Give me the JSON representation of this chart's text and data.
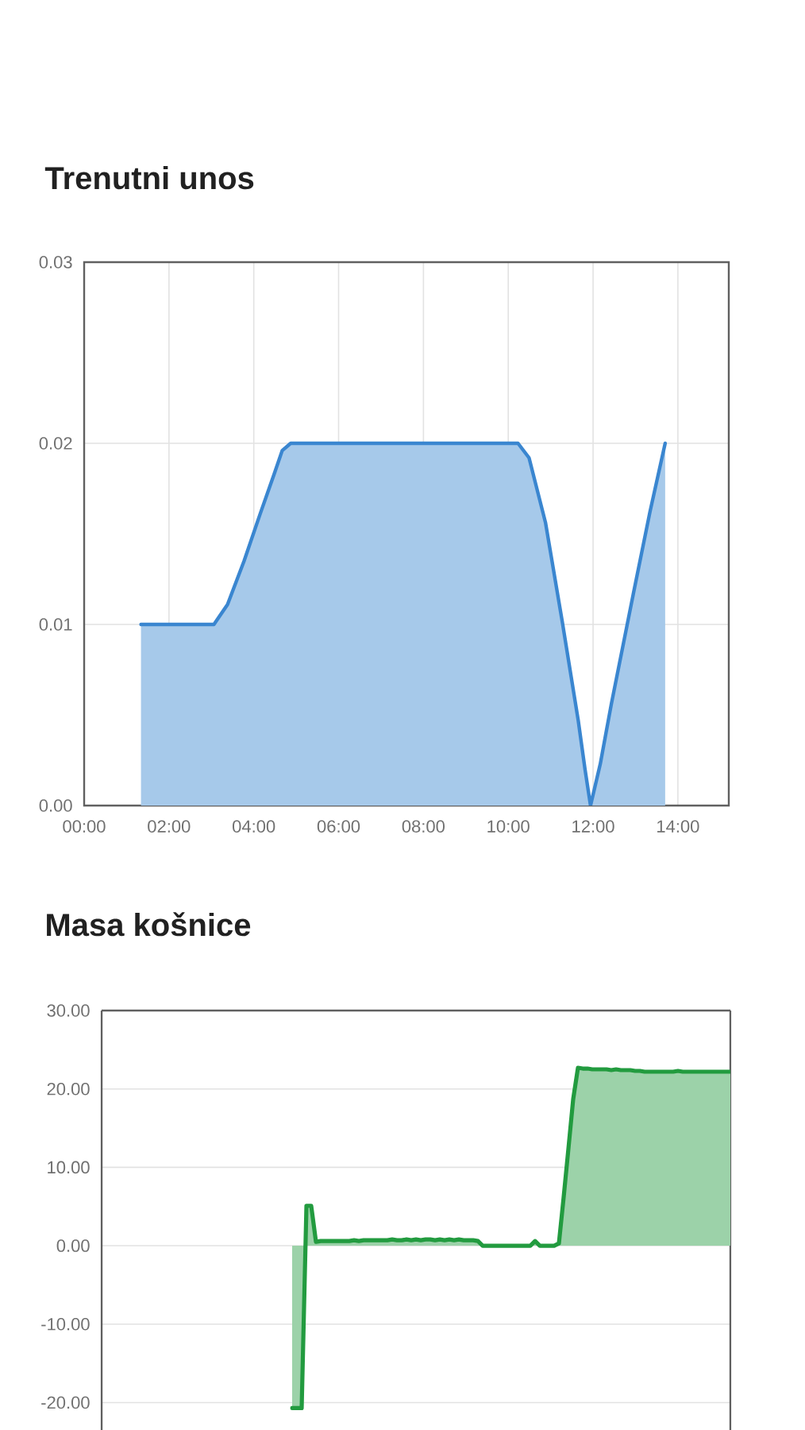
{
  "chart_data": [
    {
      "type": "area",
      "title": "Trenutni unos",
      "x": [
        1.34,
        3.06,
        3.38,
        3.77,
        4.15,
        4.48,
        4.67,
        4.87,
        10.23,
        10.49,
        10.88,
        11.27,
        11.65,
        11.81,
        11.94,
        12.17,
        12.43,
        12.95,
        13.34,
        13.7
      ],
      "values": [
        0.01,
        0.01,
        0.0111,
        0.0135,
        0.0161,
        0.0183,
        0.0196,
        0.02,
        0.02,
        0.0192,
        0.0156,
        0.0102,
        0.0047,
        0.002,
        0,
        0.0023,
        0.0056,
        0.0117,
        0.0162,
        0.02
      ],
      "color": "#3a86d0",
      "xlim": [
        0,
        15.2
      ],
      "xticks": [
        {
          "value": 0,
          "label": "00:00"
        },
        {
          "value": 2,
          "label": "02:00"
        },
        {
          "value": 4,
          "label": "04:00"
        },
        {
          "value": 6,
          "label": "06:00"
        },
        {
          "value": 8,
          "label": "08:00"
        },
        {
          "value": 10,
          "label": "10:00"
        },
        {
          "value": 12,
          "label": "12:00"
        },
        {
          "value": 14,
          "label": "14:00"
        }
      ],
      "ylim": [
        0,
        0.03
      ],
      "yticks": [
        {
          "value": 0,
          "label": "0.00"
        },
        0.01,
        0.02,
        0.03
      ],
      "grid": true
    },
    {
      "type": "area",
      "title": "Masa košnice",
      "categories": [
        null,
        null,
        null,
        null,
        null,
        null,
        null,
        null,
        null,
        null,
        null,
        null,
        null,
        null,
        null,
        null,
        null,
        null,
        null,
        null,
        null,
        null,
        null,
        null,
        null,
        null,
        null,
        null,
        null,
        null,
        null,
        null,
        null,
        null,
        null,
        null,
        null,
        null,
        null,
        null,
        null,
        null,
        null,
        null,
        null,
        null,
        null,
        null,
        null,
        null,
        null,
        null,
        null,
        null,
        null,
        null,
        null,
        null,
        null,
        null,
        null,
        null,
        null,
        null,
        null,
        null,
        null,
        null,
        null,
        null,
        null,
        null,
        null,
        null,
        null,
        null,
        null,
        null,
        null,
        null,
        null,
        null,
        null,
        null,
        null,
        null,
        null,
        null,
        null,
        null,
        null,
        null,
        null,
        null,
        null,
        null,
        null,
        null,
        null,
        null,
        null,
        null,
        null,
        null,
        null,
        null,
        null,
        null,
        null,
        null,
        null,
        null,
        null,
        null,
        null,
        null,
        null,
        null,
        null,
        null,
        null,
        null,
        null,
        null,
        null,
        null,
        null,
        null,
        null,
        null,
        null,
        null,
        null
      ],
      "values": [
        null,
        null,
        null,
        null,
        null,
        null,
        null,
        null,
        null,
        null,
        null,
        null,
        null,
        null,
        null,
        null,
        null,
        null,
        null,
        null,
        null,
        null,
        null,
        null,
        null,
        null,
        null,
        null,
        null,
        null,
        null,
        null,
        null,
        null,
        null,
        null,
        null,
        null,
        null,
        null,
        -20.7,
        -20.7,
        -20.7,
        5.1,
        5.1,
        0.5,
        0.6,
        0.6,
        0.6,
        0.6,
        0.6,
        0.6,
        0.6,
        0.7,
        0.6,
        0.7,
        0.7,
        0.7,
        0.7,
        0.7,
        0.7,
        0.8,
        0.7,
        0.7,
        0.8,
        0.7,
        0.8,
        0.7,
        0.8,
        0.8,
        0.7,
        0.8,
        0.7,
        0.8,
        0.7,
        0.8,
        0.7,
        0.7,
        0.7,
        0.6,
        0,
        0,
        0,
        0,
        0,
        0,
        0,
        0,
        0,
        0,
        0,
        0.6,
        0,
        0,
        0,
        0,
        0.3,
        6.2,
        12.4,
        18.7,
        22.7,
        22.6,
        22.6,
        22.5,
        22.5,
        22.5,
        22.5,
        22.4,
        22.5,
        22.4,
        22.4,
        22.4,
        22.3,
        22.3,
        22.2,
        22.2,
        22.2,
        22.2,
        22.2,
        22.2,
        22.2,
        22.3,
        22.2,
        22.2,
        22.2,
        22.2,
        22.2,
        22.2,
        22.2,
        22.2,
        22.2,
        22.2,
        22.2
      ],
      "color": "#229b3f",
      "ylim": [
        -23.5,
        30
      ],
      "yticks": [
        {
          "value": -20,
          "label": "-20.00"
        },
        {
          "value": -10,
          "label": "-10.00"
        },
        {
          "value": 0,
          "label": "0.00"
        },
        {
          "value": 10,
          "label": "10.00"
        },
        {
          "value": 20,
          "label": "20.00"
        },
        {
          "value": 30,
          "label": "30.00"
        }
      ],
      "grid": "y",
      "tick_labels": "y"
    }
  ]
}
